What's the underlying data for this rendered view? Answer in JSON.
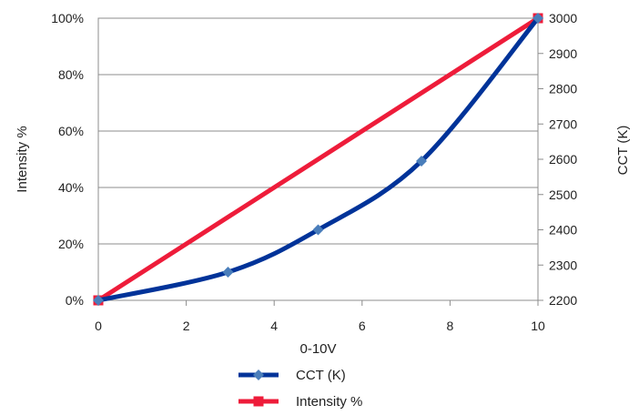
{
  "chart_data": {
    "type": "line",
    "xlabel": "0-10V",
    "ylabel": "Intensity %",
    "y2label": "CCT (K)",
    "xlim": [
      0,
      10
    ],
    "ylim": [
      0,
      100
    ],
    "y2lim": [
      2200,
      3000
    ],
    "x_ticks": [
      "0",
      "2",
      "4",
      "6",
      "8",
      "10"
    ],
    "x_tick_values": [
      0,
      2,
      4,
      6,
      8,
      10
    ],
    "y_ticks": [
      "0%",
      "20%",
      "40%",
      "60%",
      "80%",
      "100%"
    ],
    "y_tick_values": [
      0,
      20,
      40,
      60,
      80,
      100
    ],
    "y2_ticks": [
      "2200",
      "2300",
      "2400",
      "2500",
      "2600",
      "2700",
      "2800",
      "2900",
      "3000"
    ],
    "y2_tick_values": [
      2200,
      2300,
      2400,
      2500,
      2600,
      2700,
      2800,
      2900,
      3000
    ],
    "grid": "horizontal",
    "legend_position": "bottom",
    "series": [
      {
        "name": "CCT (K)",
        "axis": "right",
        "color": "#003399",
        "marker": "diamond",
        "marker_color": "#4a7ebb",
        "smooth": true,
        "x": [
          0,
          2.95,
          5,
          7.35,
          10
        ],
        "y": [
          2200,
          2280,
          2400,
          2595,
          3000
        ]
      },
      {
        "name": "Intensity %",
        "axis": "left",
        "color": "#ee1c3a",
        "marker": "square",
        "marker_color": "#ee1c3a",
        "smooth": false,
        "x": [
          0,
          10
        ],
        "y": [
          0,
          100
        ]
      }
    ]
  }
}
